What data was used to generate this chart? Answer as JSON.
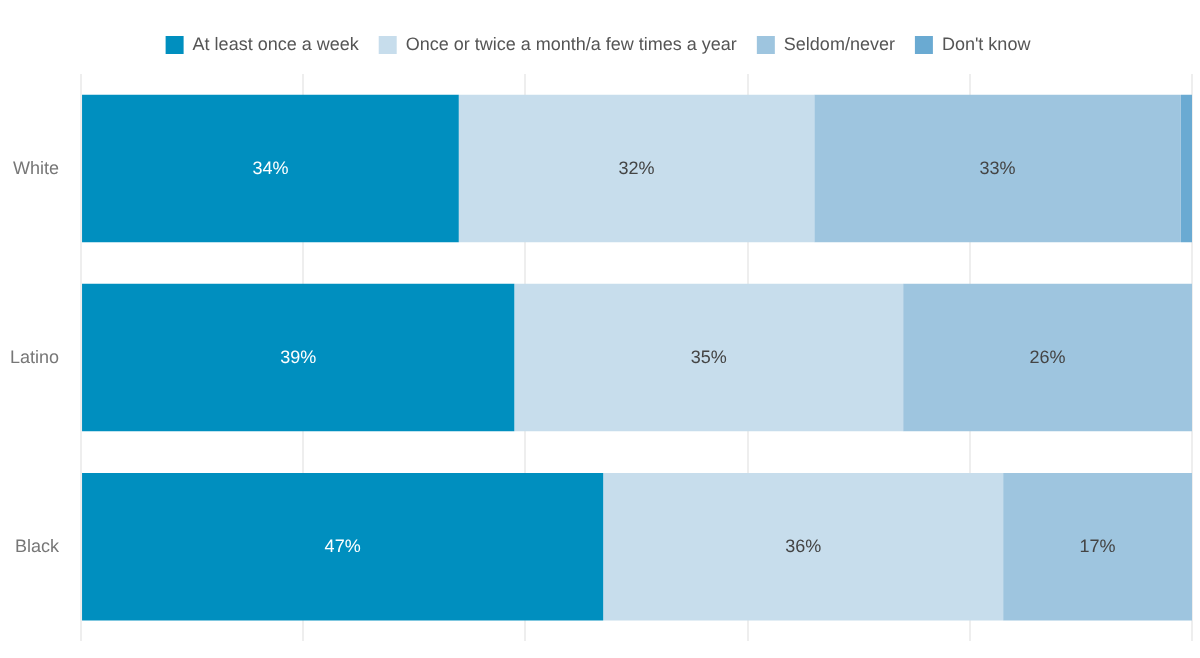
{
  "chart_data": {
    "type": "bar",
    "orientation": "horizontal",
    "stacked": true,
    "categories": [
      "White",
      "Latino",
      "Black"
    ],
    "series": [
      {
        "name": "At least once a week",
        "color": "#008fbf",
        "values": [
          34,
          39,
          47
        ],
        "value_labels": [
          "34%",
          "39%",
          "47%"
        ]
      },
      {
        "name": "Once or twice a month/a few times a year",
        "color": "#c7ddec",
        "values": [
          32,
          35,
          36
        ],
        "value_labels": [
          "32%",
          "35%",
          "36%"
        ]
      },
      {
        "name": "Seldom/never",
        "color": "#9ec5df",
        "values": [
          33,
          26,
          17
        ],
        "value_labels": [
          "33%",
          "26%",
          "17%"
        ]
      },
      {
        "name": "Don't know",
        "color": "#6aaad2",
        "values": [
          1,
          null,
          null
        ],
        "value_labels": [
          null,
          null,
          null
        ]
      }
    ],
    "xlim": [
      0,
      100
    ],
    "xticks": [
      {
        "value": 0,
        "label": null
      },
      {
        "value": 20,
        "label": null
      },
      {
        "value": 40,
        "label": null
      },
      {
        "value": 60,
        "label": null
      },
      {
        "value": 80,
        "label": null
      },
      {
        "value": 100,
        "label": null
      }
    ],
    "grid": "x",
    "legend": "top",
    "tick_labels": "y"
  }
}
